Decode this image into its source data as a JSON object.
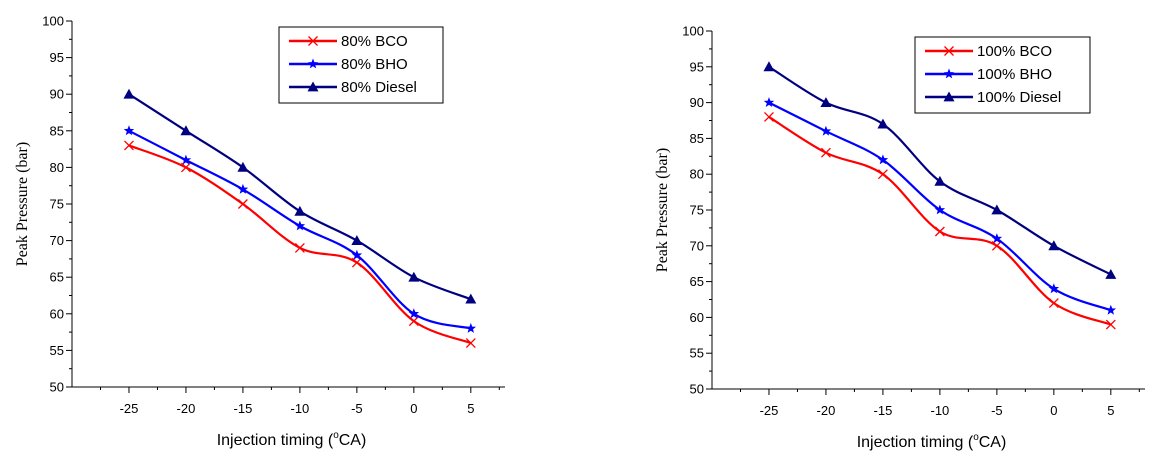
{
  "chart_data": [
    {
      "type": "line",
      "xlabel_main": "Injection timing (",
      "xlabel_sup": "o",
      "xlabel_tail": "CA)",
      "ylabel": "Peak Pressure (bar)",
      "x": [
        -25,
        -20,
        -15,
        -10,
        -5,
        0,
        5
      ],
      "xticks": [
        "-25",
        "-20",
        "-15",
        "-10",
        "-5",
        "0",
        "5"
      ],
      "xlim": [
        -30,
        8
      ],
      "ylim": [
        50,
        100
      ],
      "yticks": [
        "50",
        "55",
        "60",
        "65",
        "70",
        "75",
        "80",
        "85",
        "90",
        "95",
        "100"
      ],
      "legend_position": "top-right",
      "series": [
        {
          "name": "80% BCO",
          "color": "#ff0000",
          "marker": "x",
          "values": [
            83,
            80,
            75,
            69,
            67,
            59,
            56
          ]
        },
        {
          "name": "80% BHO",
          "color": "#0000ff",
          "marker": "star",
          "values": [
            85,
            81,
            77,
            72,
            68,
            60,
            58
          ]
        },
        {
          "name": "80% Diesel",
          "color": "#000080",
          "marker": "triangle",
          "values": [
            90,
            85,
            80,
            74,
            70,
            65,
            62
          ]
        }
      ]
    },
    {
      "type": "line",
      "xlabel_main": "Injection timing (",
      "xlabel_sup": "o",
      "xlabel_tail": "CA)",
      "ylabel": "Peak Pressure (bar)",
      "x": [
        -25,
        -20,
        -15,
        -10,
        -5,
        0,
        5
      ],
      "xticks": [
        "-25",
        "-20",
        "-15",
        "-10",
        "-5",
        "0",
        "5"
      ],
      "xlim": [
        -30,
        8
      ],
      "ylim": [
        50,
        100
      ],
      "yticks": [
        "50",
        "55",
        "60",
        "65",
        "70",
        "75",
        "80",
        "85",
        "90",
        "95",
        "100"
      ],
      "legend_position": "top-right",
      "series": [
        {
          "name": "100% BCO",
          "color": "#ff0000",
          "marker": "x",
          "values": [
            88,
            83,
            80,
            72,
            70,
            62,
            59
          ]
        },
        {
          "name": "100% BHO",
          "color": "#0000ff",
          "marker": "star",
          "values": [
            90,
            86,
            82,
            75,
            71,
            64,
            61
          ]
        },
        {
          "name": "100% Diesel",
          "color": "#000080",
          "marker": "triangle",
          "values": [
            95,
            90,
            87,
            79,
            75,
            70,
            66
          ]
        }
      ]
    }
  ]
}
